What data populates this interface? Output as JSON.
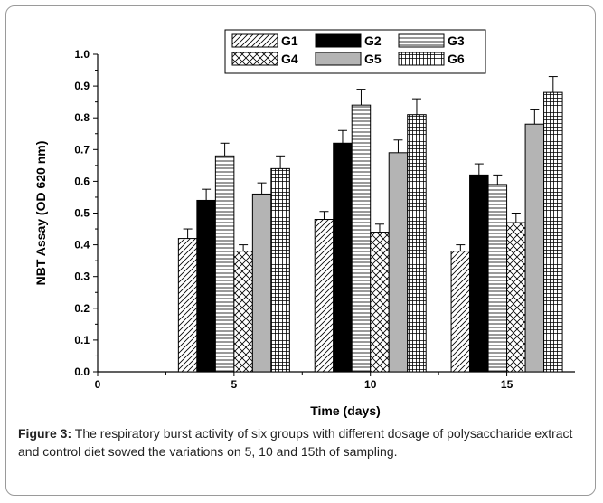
{
  "chart_data": {
    "type": "bar",
    "xlabel": "Time (days)",
    "ylabel": "NBT Assay (OD 620 nm)",
    "xlim": [
      0,
      17.5
    ],
    "ylim": [
      0.0,
      1.0
    ],
    "x_ticks": [
      0,
      5,
      10,
      15
    ],
    "y_ticks": [
      "0.0",
      "0.1",
      "0.2",
      "0.3",
      "0.4",
      "0.5",
      "0.6",
      "0.7",
      "0.8",
      "0.9",
      "1.0"
    ],
    "categories": [
      5,
      10,
      15
    ],
    "grid": false,
    "legend_position": "top-center",
    "series": [
      {
        "name": "G1",
        "pattern": "diagonal-hatch",
        "color": "#ffffff",
        "values": [
          0.42,
          0.48,
          0.38
        ],
        "errors": [
          0.03,
          0.025,
          0.02
        ]
      },
      {
        "name": "G2",
        "pattern": "solid",
        "color": "#000000",
        "values": [
          0.54,
          0.72,
          0.62
        ],
        "errors": [
          0.035,
          0.04,
          0.035
        ]
      },
      {
        "name": "G3",
        "pattern": "horizontal-lines",
        "color": "#ffffff",
        "values": [
          0.68,
          0.84,
          0.59
        ],
        "errors": [
          0.04,
          0.05,
          0.03
        ]
      },
      {
        "name": "G4",
        "pattern": "cross-hatch",
        "color": "#ffffff",
        "values": [
          0.38,
          0.44,
          0.47
        ],
        "errors": [
          0.02,
          0.025,
          0.03
        ]
      },
      {
        "name": "G5",
        "pattern": "solid",
        "color": "#b4b4b4",
        "values": [
          0.56,
          0.69,
          0.78
        ],
        "errors": [
          0.035,
          0.04,
          0.045
        ]
      },
      {
        "name": "G6",
        "pattern": "grid",
        "color": "#ffffff",
        "values": [
          0.64,
          0.81,
          0.88
        ],
        "errors": [
          0.04,
          0.05,
          0.05
        ]
      }
    ]
  },
  "caption": {
    "label": "Figure 3:",
    "text": " The respiratory burst activity of six groups with different dosage of polysaccharide extract and control diet sowed the variations on 5, 10 and 15th of sampling."
  }
}
